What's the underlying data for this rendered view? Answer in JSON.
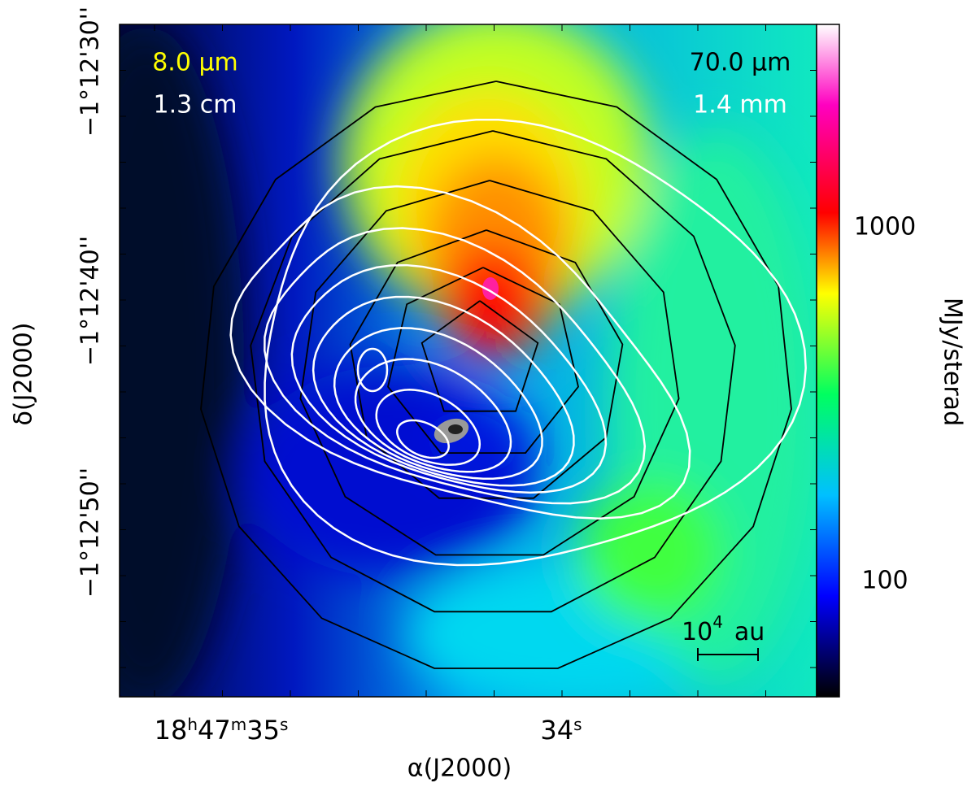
{
  "overlay_labels": {
    "band_1": "8.0 μm",
    "band_2": "1.3 cm",
    "band_3": "70.0 μm",
    "band_4": "1.4 mm"
  },
  "scale_bar": {
    "base": "10",
    "exponent": "4",
    "unit": "au"
  },
  "x_axis": {
    "label": "α(J2000)",
    "ticks": [
      [
        "18",
        "h",
        "47",
        "m",
        "35",
        "s"
      ],
      [
        "",
        "",
        "",
        "",
        "34",
        "s"
      ]
    ]
  },
  "y_axis": {
    "label": "δ(J2000)",
    "ticks": [
      "−1°12'30''",
      "−1°12'40''",
      "−1°12'50''"
    ]
  },
  "colorbar": {
    "label": "MJy/sterad",
    "ticks": [
      "1000",
      "100"
    ]
  }
}
